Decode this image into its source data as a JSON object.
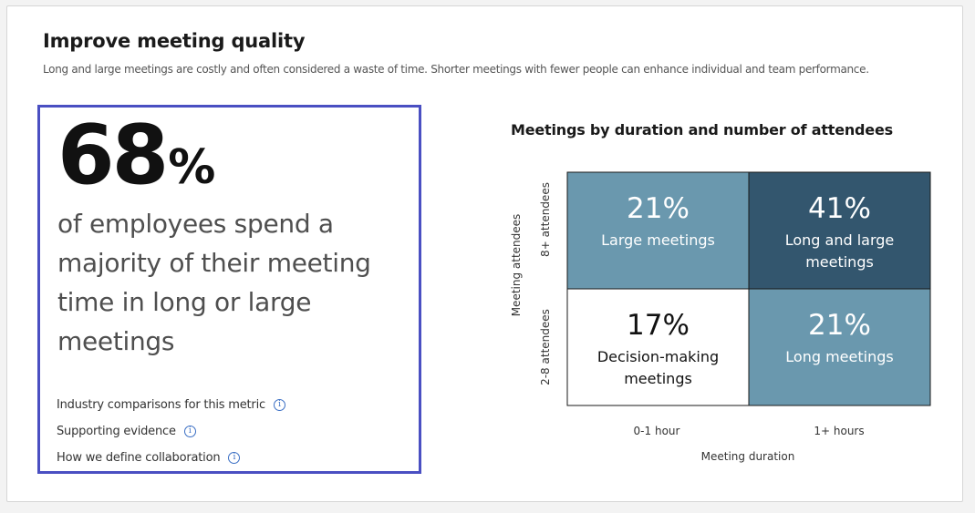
{
  "header": {
    "title": "Improve meeting quality",
    "subtitle": "Long and large meetings are costly and often considered a waste of time. Shorter meetings with fewer people can enhance individual and team performance."
  },
  "metric": {
    "value": "68",
    "unit": "%",
    "statement": "of employees spend a majority of their meeting time in long or large meetings"
  },
  "links": [
    {
      "label": "Industry comparisons for this metric",
      "icon": "info-icon"
    },
    {
      "label": "Supporting evidence",
      "icon": "info-icon"
    },
    {
      "label": "How we define collaboration",
      "icon": "info-icon"
    }
  ],
  "chart_data": {
    "type": "heatmap",
    "title": "Meetings by duration and number of attendees",
    "xlabel": "Meeting duration",
    "ylabel": "Meeting attendees",
    "x_categories": [
      "0-1 hour",
      "1+ hours"
    ],
    "y_categories": [
      "8+ attendees",
      "2-8 attendees"
    ],
    "cells": [
      {
        "x": "0-1 hour",
        "y": "8+ attendees",
        "value": 21,
        "label": "21%",
        "name": [
          "Large meetings"
        ],
        "color": "#6a98ae",
        "text_color": "#ffffff"
      },
      {
        "x": "1+ hours",
        "y": "8+ attendees",
        "value": 41,
        "label": "41%",
        "name": [
          "Long and large",
          "meetings"
        ],
        "color": "#33566e",
        "text_color": "#ffffff"
      },
      {
        "x": "0-1 hour",
        "y": "2-8 attendees",
        "value": 17,
        "label": "17%",
        "name": [
          "Decision-making",
          "meetings"
        ],
        "color": "#ffffff",
        "text_color": "#111111"
      },
      {
        "x": "1+ hours",
        "y": "2-8 attendees",
        "value": 21,
        "label": "21%",
        "name": [
          "Long meetings"
        ],
        "color": "#6a98ae",
        "text_color": "#ffffff"
      }
    ]
  }
}
